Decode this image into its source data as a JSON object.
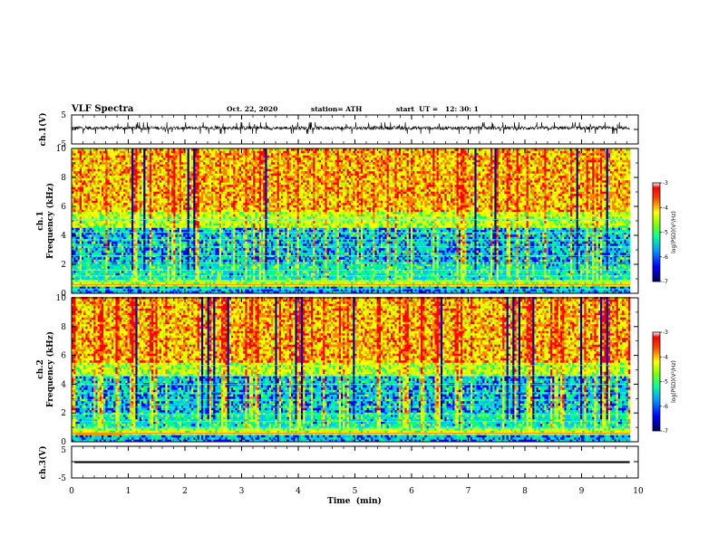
{
  "header": {
    "title": "VLF Spectra",
    "date": "Oct. 22, 2020",
    "station": "station= ATH",
    "start": "start  UT =   12: 30: 1"
  },
  "chart_data": [
    {
      "type": "line",
      "id": "ch1-waveform",
      "ylabel": "ch.1(V)",
      "ylim": [
        -5,
        5
      ],
      "yticks": [
        "5",
        "-5"
      ],
      "xlim": [
        0,
        10
      ],
      "baseline": 0.5,
      "series": [
        {
          "values_range": [
            -1.5,
            2.5
          ]
        }
      ]
    },
    {
      "type": "heatmap",
      "id": "ch1-spectrogram",
      "ylabel": "ch.1\nFrequency (kHz)",
      "ylim": [
        0,
        10
      ],
      "yticks": [
        "0",
        "2",
        "4",
        "6",
        "8",
        "10"
      ],
      "xlim": [
        0,
        10
      ],
      "colorbar": {
        "label": "log(PSD)(V²/Hz)",
        "range": [
          -7,
          -3
        ],
        "ticks": [
          "-3",
          "-4",
          "-5",
          "-6",
          "-7"
        ]
      },
      "band_rows_khz": [
        0.3,
        0.8,
        1.2,
        1.6,
        2.1,
        2.6,
        3.2,
        3.7,
        4.2,
        5.1
      ]
    },
    {
      "type": "heatmap",
      "id": "ch2-spectrogram",
      "ylabel": "ch.2\nFrequency (kHz)",
      "ylim": [
        0,
        10
      ],
      "yticks": [
        "0",
        "2",
        "4",
        "6",
        "8",
        "10"
      ],
      "xlim": [
        0,
        10
      ],
      "colorbar": {
        "label": "log(PSD)(V²/Hz)",
        "range": [
          -7,
          -3
        ],
        "ticks": [
          "-3",
          "-4",
          "-5",
          "-6",
          "-7"
        ]
      },
      "band_rows_khz": [
        0.5,
        1.0,
        1.4,
        1.9,
        2.4,
        2.9,
        3.4,
        4.0,
        4.6,
        5.3
      ]
    },
    {
      "type": "line",
      "id": "ch3-waveform",
      "ylabel": "ch.3(V)",
      "ylim": [
        -5,
        5
      ],
      "yticks": [
        "5",
        "-5"
      ],
      "xlim": [
        0,
        10
      ],
      "baseline": 0,
      "series": [
        {
          "values_range": [
            -0.3,
            0.3
          ]
        }
      ]
    }
  ],
  "xaxis": {
    "label": "Time  (min)",
    "ticks": [
      "0",
      "1",
      "2",
      "3",
      "4",
      "5",
      "6",
      "7",
      "8",
      "9",
      "10"
    ]
  },
  "colors": {
    "scale": [
      "#000080",
      "#0000ff",
      "#00c0ff",
      "#00ff80",
      "#c0ff00",
      "#ffff00",
      "#ff8000",
      "#ff0000"
    ]
  }
}
